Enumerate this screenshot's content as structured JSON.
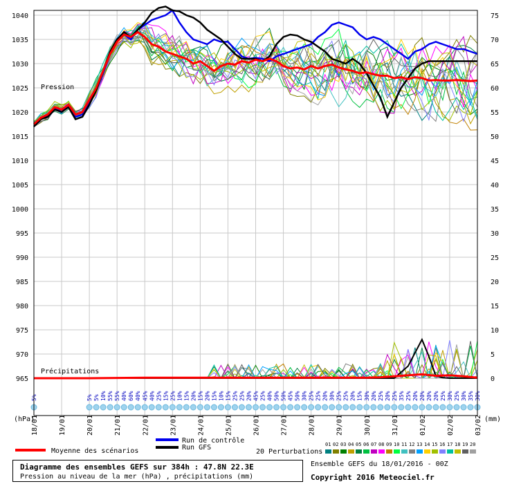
{
  "chart_data": {
    "type": "line",
    "title": "Diagramme des ensembles GEFS sur 384h : 47.8N 22.3E",
    "subtitle": "Pression au niveau de la mer (hPa) , précipitations (mm)",
    "left_axis_unit": "(hPa)",
    "right_axis_unit": "(mm)",
    "y_left_ticks": [
      1040,
      1035,
      1030,
      1025,
      1020,
      1015,
      1010,
      1005,
      1000,
      995,
      990,
      985,
      980,
      975,
      970,
      965
    ],
    "y_right_ticks": [
      75,
      70,
      65,
      60,
      55,
      50,
      45,
      40,
      35,
      30,
      25,
      20,
      15,
      10,
      5,
      0
    ],
    "ylim_hpa": [
      962,
      1042
    ],
    "x_dates": [
      "18/01",
      "19/01",
      "20/01",
      "21/01",
      "22/01",
      "23/01",
      "24/01",
      "25/01",
      "26/01",
      "27/01",
      "28/01",
      "29/01",
      "30/01",
      "31/01",
      "01/02",
      "02/02",
      "03/02"
    ],
    "x_hours_range": [
      0,
      384
    ],
    "grid": true,
    "labels": {
      "pression": "Pression",
      "precipitations": "Précipitations"
    },
    "mean_pressure": {
      "name": "Moyenne des scénarios",
      "color": "#ff0000",
      "hours": [
        0,
        6,
        12,
        18,
        24,
        30,
        36,
        42,
        48,
        54,
        60,
        66,
        72,
        78,
        84,
        90,
        96,
        102,
        108,
        114,
        120,
        126,
        132,
        138,
        144,
        150,
        156,
        162,
        168,
        174,
        180,
        186,
        192,
        198,
        204,
        210,
        216,
        222,
        228,
        234,
        240,
        246,
        252,
        258,
        264,
        270,
        276,
        282,
        288,
        294,
        300,
        306,
        312,
        318,
        324,
        330,
        336,
        342,
        348,
        354,
        360,
        366,
        372,
        378,
        384
      ],
      "values": [
        1017.5,
        1018.8,
        1019.5,
        1021.0,
        1020.5,
        1021.5,
        1019.5,
        1020.0,
        1022.5,
        1025.0,
        1028.5,
        1032.0,
        1034.5,
        1036.0,
        1035.5,
        1036.5,
        1035.5,
        1034.0,
        1033.5,
        1032.5,
        1032.0,
        1031.5,
        1031.0,
        1030.0,
        1030.5,
        1029.5,
        1028.5,
        1029.5,
        1030.0,
        1029.8,
        1030.5,
        1030.2,
        1030.8,
        1030.5,
        1031.0,
        1030.5,
        1029.5,
        1029.0,
        1029.2,
        1028.8,
        1029.5,
        1029.0,
        1029.5,
        1029.8,
        1029.2,
        1028.8,
        1028.5,
        1028.0,
        1028.2,
        1027.8,
        1027.5,
        1027.5,
        1027.0,
        1027.2,
        1026.8,
        1027.2,
        1027.0,
        1026.5,
        1026.6,
        1026.5,
        1026.5,
        1026.6,
        1026.5,
        1026.4,
        1026.5
      ]
    },
    "control_run": {
      "name": "Run de contrôle",
      "color": "#0000ee",
      "hours": [
        0,
        6,
        12,
        18,
        24,
        30,
        36,
        42,
        48,
        54,
        60,
        66,
        72,
        78,
        84,
        90,
        96,
        102,
        108,
        114,
        120,
        126,
        132,
        138,
        144,
        150,
        156,
        162,
        168,
        174,
        180,
        186,
        192,
        198,
        204,
        210,
        216,
        222,
        228,
        234,
        240,
        246,
        252,
        258,
        264,
        270,
        276,
        282,
        288,
        294,
        300,
        306,
        312,
        318,
        324,
        330,
        336,
        342,
        348,
        354,
        360,
        366,
        372,
        378,
        384
      ],
      "values": [
        1017.0,
        1018.5,
        1019.2,
        1020.8,
        1020.0,
        1021.3,
        1019.0,
        1019.5,
        1022.0,
        1024.5,
        1028.0,
        1032.0,
        1035.0,
        1036.0,
        1035.0,
        1037.0,
        1038.0,
        1039.0,
        1039.5,
        1040.0,
        1041.0,
        1038.5,
        1036.5,
        1035.0,
        1034.5,
        1034.0,
        1035.0,
        1034.5,
        1034.5,
        1033.0,
        1031.5,
        1031.0,
        1031.2,
        1031.0,
        1030.5,
        1031.5,
        1032.0,
        1032.5,
        1033.0,
        1033.5,
        1034.0,
        1035.5,
        1036.5,
        1038.0,
        1038.5,
        1038.0,
        1037.5,
        1036.0,
        1035.0,
        1035.5,
        1035.0,
        1034.0,
        1033.0,
        1032.0,
        1031.0,
        1032.5,
        1033.0,
        1034.0,
        1034.5,
        1034.0,
        1033.5,
        1033.0,
        1033.0,
        1032.5,
        1032.0
      ]
    },
    "gfs_run": {
      "name": "Run GFS",
      "color": "#000000",
      "hours": [
        0,
        6,
        12,
        18,
        24,
        30,
        36,
        42,
        48,
        54,
        60,
        66,
        72,
        78,
        84,
        90,
        96,
        102,
        108,
        114,
        120,
        126,
        132,
        138,
        144,
        150,
        156,
        162,
        168,
        174,
        180,
        186,
        192,
        198,
        204,
        210,
        216,
        222,
        228,
        234,
        240,
        246,
        252,
        258,
        264,
        270,
        276,
        282,
        288,
        294,
        300,
        306,
        312,
        318,
        324,
        330,
        336,
        342,
        348,
        354,
        360,
        366,
        372,
        378,
        384
      ],
      "values": [
        1017.0,
        1018.5,
        1019.0,
        1020.5,
        1020.0,
        1021.0,
        1018.5,
        1019.0,
        1021.5,
        1024.5,
        1028.5,
        1032.5,
        1035.0,
        1036.5,
        1035.5,
        1037.0,
        1038.5,
        1040.5,
        1041.5,
        1041.8,
        1041.0,
        1040.8,
        1040.0,
        1039.5,
        1038.5,
        1037.0,
        1036.0,
        1035.0,
        1033.5,
        1032.0,
        1031.0,
        1031.0,
        1031.0,
        1030.5,
        1031.5,
        1034.0,
        1035.5,
        1036.0,
        1035.8,
        1035.0,
        1034.5,
        1033.5,
        1032.5,
        1031.0,
        1030.5,
        1030.0,
        1031.0,
        1030.0,
        1028.0,
        1025.5,
        1023.0,
        1019.0,
        1022.0,
        1025.0,
        1027.0,
        1029.0,
        1030.0,
        1030.5,
        1030.5,
        1030.5,
        1030.5,
        1030.5,
        1030.5,
        1030.5,
        1030.5
      ]
    },
    "perturbations_label": "20 Perturbations",
    "perturbation_ids": [
      "01",
      "02",
      "03",
      "04",
      "05",
      "06",
      "07",
      "08",
      "09",
      "10",
      "11",
      "12",
      "13",
      "14",
      "15",
      "16",
      "17",
      "18",
      "19",
      "20"
    ],
    "perturbation_colors": [
      "#008080",
      "#808000",
      "#008000",
      "#c0a000",
      "#008040",
      "#00c040",
      "#c000c0",
      "#ff00ff",
      "#c08000",
      "#00ff40",
      "#40c0c0",
      "#808080",
      "#00a0ff",
      "#ffd000",
      "#a0c000",
      "#8080ff",
      "#00c0a0",
      "#c0c000",
      "#606060",
      "#a0a0a0"
    ],
    "precip_probability_hours": [
      0,
      48,
      54,
      60,
      66,
      72,
      78,
      84,
      90,
      96,
      102,
      108,
      114,
      120,
      126,
      132,
      138,
      144,
      150,
      156,
      162,
      168,
      174,
      180,
      186,
      192,
      198,
      204,
      210,
      216,
      222,
      228,
      234,
      240,
      246,
      252,
      258,
      264,
      270,
      276,
      282,
      288,
      294,
      300,
      306,
      312,
      318,
      324,
      330,
      336,
      342,
      348,
      354,
      360,
      366,
      372,
      378,
      384
    ],
    "precip_probability": [
      "5%",
      "5%",
      "5%",
      "10%",
      "55%",
      "55%",
      "40%",
      "60%",
      "40%",
      "45%",
      "40%",
      "25%",
      "15%",
      "25%",
      "10%",
      "15%",
      "20%",
      "15%",
      "20%",
      "15%",
      "10%",
      "15%",
      "25%",
      "25%",
      "20%",
      "45%",
      "25%",
      "40%",
      "50%",
      "50%",
      "45%",
      "50%",
      "30%",
      "25%",
      "25%",
      "20%",
      "30%",
      "25%",
      "25%",
      "20%",
      "15%",
      "30%",
      "20%",
      "25%",
      "20%",
      "25%",
      "35%",
      "25%",
      "20%",
      "20%",
      "20%",
      "20%",
      "25%",
      "30%",
      "25%",
      "30%",
      "35%",
      "30%"
    ],
    "mean_precip_hours": [
      0,
      48,
      96,
      144,
      192,
      240,
      288,
      300,
      312,
      324,
      336,
      348,
      360,
      372,
      384
    ],
    "mean_precip_values": [
      0,
      0,
      0.1,
      0.1,
      0.1,
      0.1,
      0.1,
      0.2,
      0.4,
      0.6,
      0.8,
      0.5,
      0.6,
      0.4,
      0.1
    ],
    "gfs_precip_hours": [
      0,
      288,
      300,
      312,
      324,
      336,
      342,
      348,
      354,
      360,
      384
    ],
    "gfs_precip_values": [
      0,
      0,
      0,
      0,
      2.5,
      8.0,
      4.5,
      0.5,
      0.1,
      0,
      0
    ]
  },
  "legend": {
    "mean_label": "Moyenne des scénarios",
    "control_label": "Run de contrôle",
    "gfs_label": "Run GFS",
    "perturbations_label": "20 Perturbations"
  },
  "footer": {
    "title": "Diagramme des ensembles GEFS sur 384h : 47.8N 22.3E",
    "subtitle": "Pression au niveau de la mer (hPa) , précipitations (mm)",
    "run_info": "Ensemble GEFS du 18/01/2016 - 00Z",
    "copyright": "Copyright 2016 Meteociel.fr"
  }
}
